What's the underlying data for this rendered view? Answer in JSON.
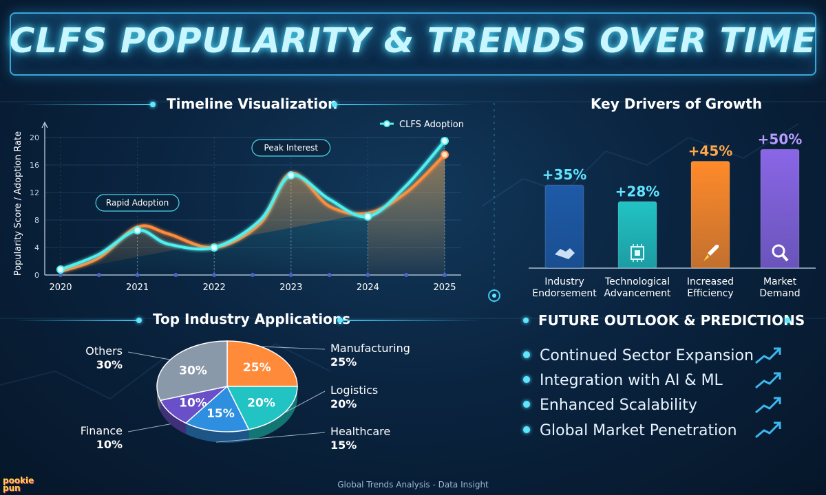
{
  "title": "CLFS POPULARITY & TRENDS OVER TIME",
  "sections": {
    "timeline": "Timeline Visualization",
    "drivers": "Key Drivers of Growth",
    "applications": "Top Industry Applications",
    "outlook": "FUTURE OUTLOOK & PREDICTIONS"
  },
  "footer": "Global Trends Analysis - Data Insight",
  "logo": "pookie pun",
  "colors": {
    "cyan": "#4ff0f0",
    "orange": "#ff8c3a",
    "navy": "#1e5aa8",
    "teal": "#22c3c3",
    "purple": "#8a66e6",
    "gray": "#8a99aa"
  },
  "chart_data": [
    {
      "type": "line",
      "ylabel": "Popularity Score / Adoption Rate",
      "ylim": [
        0,
        20
      ],
      "yticks": [
        0,
        4,
        8,
        12,
        16,
        20
      ],
      "xticks": [
        "2020",
        "2021",
        "2022",
        "2023",
        "2024",
        "2025"
      ],
      "grid": true,
      "legend": "top-right",
      "series": [
        {
          "name": "CLFS Adoption",
          "color": "#4ff0f0",
          "x": [
            2020,
            2020.5,
            2021,
            2021.4,
            2022,
            2022.6,
            2023,
            2023.5,
            2024,
            2024.5,
            2025
          ],
          "y": [
            0.8,
            3,
            6.5,
            4.5,
            4,
            8,
            14.5,
            11,
            8.5,
            13,
            19.5
          ]
        },
        {
          "name": "",
          "color": "#ff8c3a",
          "x": [
            2020,
            2020.5,
            2021,
            2021.4,
            2022,
            2022.6,
            2023,
            2023.5,
            2024,
            2024.5,
            2025
          ],
          "y": [
            0.5,
            2.5,
            7,
            6,
            4,
            7.5,
            14.8,
            10,
            9,
            12,
            17.5
          ]
        }
      ],
      "annotations": [
        {
          "label": "Rapid Adoption",
          "x": 2021
        },
        {
          "label": "Peak Interest",
          "x": 2023
        }
      ]
    },
    {
      "type": "bar",
      "title": "Key Drivers of Growth",
      "categories": [
        "Industry Endorsement",
        "Technological Advancement",
        "Increased Efficiency",
        "Market Demand"
      ],
      "category_lines": [
        [
          "Industry",
          "Endorsement"
        ],
        [
          "Technological",
          "Advancement"
        ],
        [
          "Increased",
          "Efficiency"
        ],
        [
          "Market",
          "Demand"
        ]
      ],
      "values": [
        35,
        28,
        45,
        50
      ],
      "value_labels": [
        "+35%",
        "+28%",
        "+45%",
        "+50%"
      ],
      "colors": [
        "#1e5aa8",
        "#22c3c3",
        "#ff8a2a",
        "#8a66e6"
      ],
      "label_colors": [
        "#5fe6ff",
        "#5fe6ff",
        "#ffa84a",
        "#b89cff"
      ],
      "icons": [
        "handshake-icon",
        "chip-icon",
        "rocket-icon",
        "magnifier-icon"
      ],
      "ylim": [
        0,
        55
      ]
    },
    {
      "type": "pie",
      "title": "Top Industry Applications",
      "slices": [
        {
          "label": "Manufacturing",
          "value": 25,
          "color": "#ff8a3a"
        },
        {
          "label": "Logistics",
          "value": 20,
          "color": "#22c3c3"
        },
        {
          "label": "Healthcare",
          "value": 15,
          "color": "#2e8ee0"
        },
        {
          "label": "Finance",
          "value": 10,
          "color": "#6a50c8"
        },
        {
          "label": "Others",
          "value": 30,
          "color": "#8a99aa"
        }
      ]
    }
  ],
  "outlook": [
    "Continued Sector Expansion",
    "Integration with AI & ML",
    "Enhanced Scalability",
    "Global Market Penetration"
  ]
}
